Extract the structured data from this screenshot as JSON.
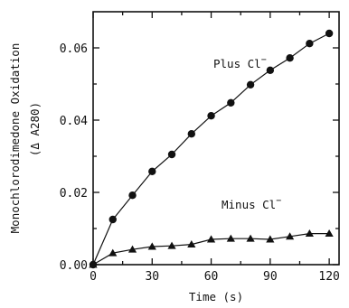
{
  "chart_data": {
    "type": "line",
    "title": "",
    "xlabel": "Time (s)",
    "ylabel": [
      "Monochlorodimedone Oxidation",
      "(Δ A280)"
    ],
    "xlim": [
      0,
      125
    ],
    "ylim": [
      0,
      0.07
    ],
    "xticks": [
      0,
      30,
      60,
      90,
      120
    ],
    "xtick_labels": [
      "0",
      "30",
      "60",
      "90",
      "120"
    ],
    "yticks": [
      0,
      0.02,
      0.04,
      0.06
    ],
    "ytick_labels": [
      "0.00",
      "0.02",
      "0.04",
      "0.06"
    ],
    "grid": false,
    "legend": "none",
    "series": [
      {
        "label_main": "Plus Cl",
        "label_sup": "−",
        "marker": "circle",
        "x": [
          0,
          10,
          20,
          30,
          40,
          50,
          60,
          70,
          80,
          90,
          100,
          110,
          120
        ],
        "y": [
          0.0,
          0.0125,
          0.0192,
          0.0258,
          0.0305,
          0.0362,
          0.0412,
          0.0448,
          0.0498,
          0.0538,
          0.0572,
          0.0612,
          0.064
        ]
      },
      {
        "label_main": "Minus Cl",
        "label_sup": "−",
        "marker": "triangle",
        "x": [
          0,
          10,
          20,
          30,
          40,
          50,
          60,
          70,
          80,
          90,
          100,
          110,
          120
        ],
        "y": [
          0.0,
          0.0032,
          0.0042,
          0.005,
          0.0052,
          0.0056,
          0.007,
          0.0072,
          0.0072,
          0.007,
          0.0078,
          0.0086,
          0.0086
        ]
      }
    ]
  }
}
